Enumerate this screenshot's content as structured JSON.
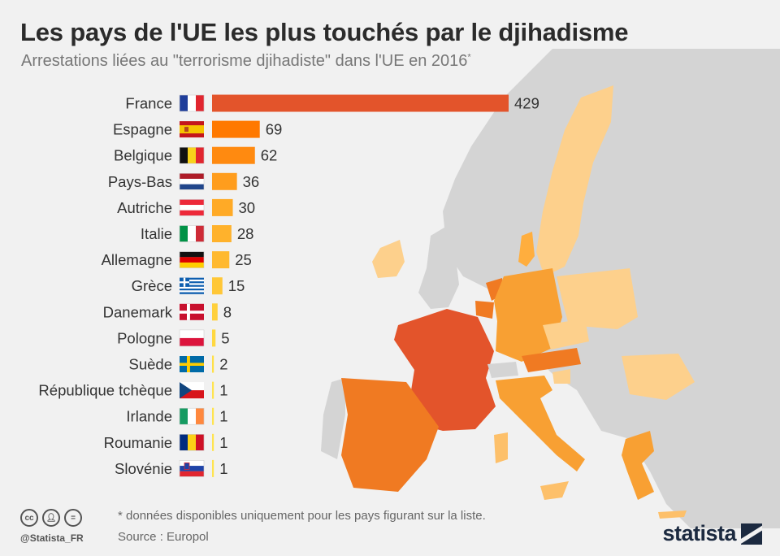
{
  "title": "Les pays de l'UE les plus touchés par le djihadisme",
  "subtitle": "Arrestations liées au \"terrorisme djihadiste\" dans l'UE en 2016",
  "subtitle_mark": "*",
  "chart_data": {
    "type": "bar",
    "orientation": "horizontal",
    "title": "Les pays de l'UE les plus touchés par le djihadisme",
    "subtitle": "Arrestations liées au \"terrorisme djihadiste\" dans l'UE en 2016",
    "categories": [
      "France",
      "Espagne",
      "Belgique",
      "Pays-Bas",
      "Autriche",
      "Italie",
      "Allemagne",
      "Grèce",
      "Danemark",
      "Pologne",
      "Suède",
      "République tchèque",
      "Irlande",
      "Roumanie",
      "Slovénie"
    ],
    "values": [
      429,
      69,
      62,
      36,
      30,
      28,
      25,
      15,
      8,
      5,
      2,
      1,
      1,
      1,
      1
    ],
    "bar_colors": [
      "#e3542b",
      "#ff7900",
      "#ff8a10",
      "#ff9d1d",
      "#ffaa26",
      "#ffb22c",
      "#ffb92f",
      "#ffc737",
      "#ffd03c",
      "#ffd840",
      "#ffe048",
      "#ffe44f",
      "#ffe44f",
      "#ffe44f",
      "#ffe44f"
    ],
    "xlim": [
      0,
      429
    ],
    "xlabel": "",
    "ylabel": "",
    "grid": false
  },
  "footer": {
    "note": "* données disponibles uniquement pour les pays figurant sur la liste.",
    "source": "Source : Europol",
    "handle": "@Statista_FR",
    "brand": "statista",
    "cc_icons": [
      "cc-icon",
      "by-icon",
      "nd-icon"
    ]
  }
}
